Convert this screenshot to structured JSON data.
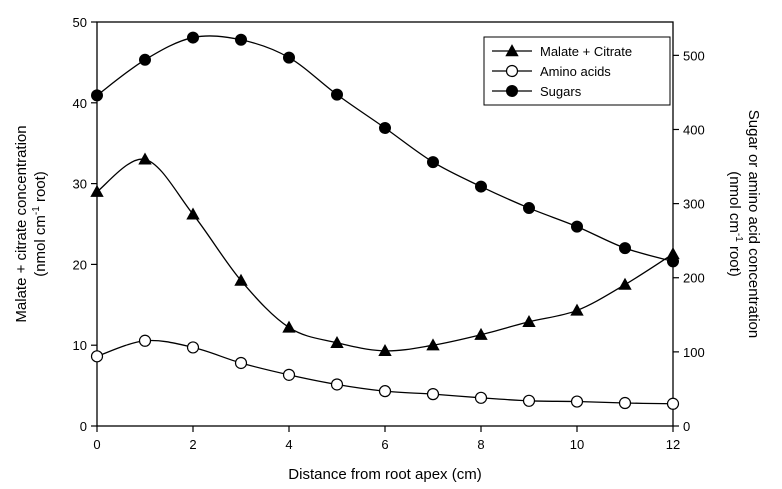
{
  "chart_data": {
    "type": "line",
    "xlabel": "Distance from root apex (cm)",
    "ylabel_left": [
      "Malate + citrate concentration",
      "(nmol cm",
      "-1",
      " root)"
    ],
    "ylabel_right": [
      "Sugar or amino acid concentration",
      "(nmol cm",
      "-1",
      " root)"
    ],
    "x_ticks": [
      0,
      2,
      4,
      6,
      8,
      10,
      12
    ],
    "y_left_ticks": [
      0,
      10,
      20,
      30,
      40,
      50
    ],
    "y_right_ticks": [
      0,
      100,
      200,
      300,
      400,
      500
    ],
    "xlim": [
      0,
      12
    ],
    "ylim_left": [
      0,
      50
    ],
    "ylim_right": [
      0,
      545
    ],
    "grid": false,
    "legend_position": "top-right",
    "x": [
      0,
      1,
      2,
      3,
      4,
      5,
      6,
      7,
      8,
      9,
      10,
      11,
      12
    ],
    "series": [
      {
        "name": "Malate + Citrate",
        "axis": "left",
        "marker": "filled-triangle",
        "values": [
          29,
          33,
          26.2,
          18,
          12.2,
          10.3,
          9.3,
          10,
          11.3,
          12.9,
          14.3,
          17.5,
          21.3
        ]
      },
      {
        "name": "Amino acids",
        "axis": "right",
        "marker": "open-circle",
        "values": [
          94,
          115,
          106,
          85,
          69,
          56,
          47,
          43,
          38,
          34,
          33,
          31,
          30
        ]
      },
      {
        "name": "Sugars",
        "axis": "right",
        "marker": "filled-circle",
        "values": [
          446,
          494,
          524,
          521,
          497,
          447,
          402,
          356,
          323,
          294,
          269,
          240,
          222
        ]
      }
    ]
  }
}
